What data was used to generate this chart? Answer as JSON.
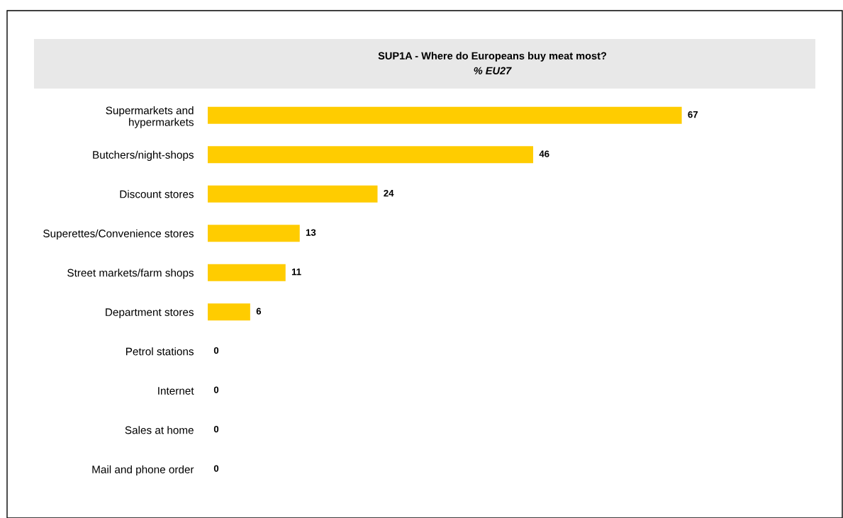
{
  "chart_data": {
    "type": "bar",
    "orientation": "horizontal",
    "title": "SUP1A - Where do Europeans buy meat most?",
    "subtitle": "% EU27",
    "categories": [
      "Supermarkets and\nhypermarkets",
      "Butchers/night-shops",
      "Discount stores",
      "Superettes/Convenience stores",
      "Street markets/farm shops",
      "Department stores",
      "Petrol stations",
      "Internet",
      "Sales at home",
      "Mail and phone order"
    ],
    "values": [
      67,
      46,
      24,
      13,
      11,
      6,
      0,
      0,
      0,
      0
    ],
    "color": "#ffcc00",
    "data_labels": true,
    "tick_labels": "y"
  }
}
